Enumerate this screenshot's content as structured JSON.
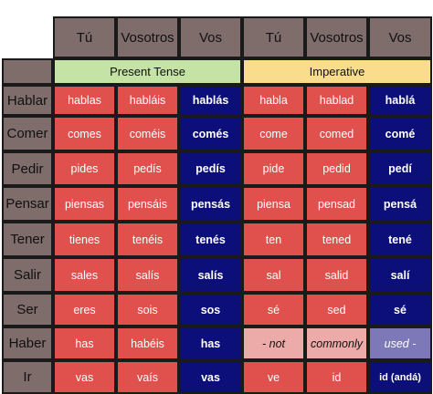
{
  "colors": {
    "header_gray": "#7e6d6b",
    "present_tense_bg": "#c4e3a5",
    "imperative_bg": "#f9dd8c",
    "regular_cell_red": "#e0504d",
    "vos_cell_blue": "#0c0f79",
    "not_common_pink": "#ecaaa8",
    "not_common_lavender": "#7d78b8"
  },
  "columns": [
    "Tú",
    "Vosotros",
    "Vos",
    "Tú",
    "Vosotros",
    "Vos"
  ],
  "tenses": {
    "present": "Present Tense",
    "imperative": "Imperative"
  },
  "rows": [
    {
      "verb": "Hablar",
      "present": [
        "hablas",
        "habláis",
        "hablás"
      ],
      "imperative": [
        "habla",
        "hablad",
        "hablá"
      ]
    },
    {
      "verb": "Comer",
      "present": [
        "comes",
        "coméis",
        "comés"
      ],
      "imperative": [
        "come",
        "comed",
        "comé"
      ]
    },
    {
      "verb": "Pedir",
      "present": [
        "pides",
        "pedís",
        "pedís"
      ],
      "imperative": [
        "pide",
        "pedid",
        "pedí"
      ]
    },
    {
      "verb": "Pensar",
      "present": [
        "piensas",
        "pensáis",
        "pensás"
      ],
      "imperative": [
        "piensa",
        "pensad",
        "pensá"
      ]
    },
    {
      "verb": "Tener",
      "present": [
        "tienes",
        "tenéis",
        "tenés"
      ],
      "imperative": [
        "ten",
        "tened",
        "tené"
      ]
    },
    {
      "verb": "Salir",
      "present": [
        "sales",
        "salís",
        "salís"
      ],
      "imperative": [
        "sal",
        "salid",
        "salí"
      ]
    },
    {
      "verb": "Ser",
      "present": [
        "eres",
        "sois",
        "sos"
      ],
      "imperative": [
        "sé",
        "sed",
        "sé"
      ]
    },
    {
      "verb": "Haber",
      "present": [
        "has",
        "habéis",
        "has"
      ],
      "imperative": [
        "- not",
        "commonly",
        "used -"
      ]
    },
    {
      "verb": "Ir",
      "present": [
        "vas",
        "vaís",
        "vas"
      ],
      "imperative": [
        "ve",
        "id",
        "id (andá)"
      ]
    }
  ]
}
